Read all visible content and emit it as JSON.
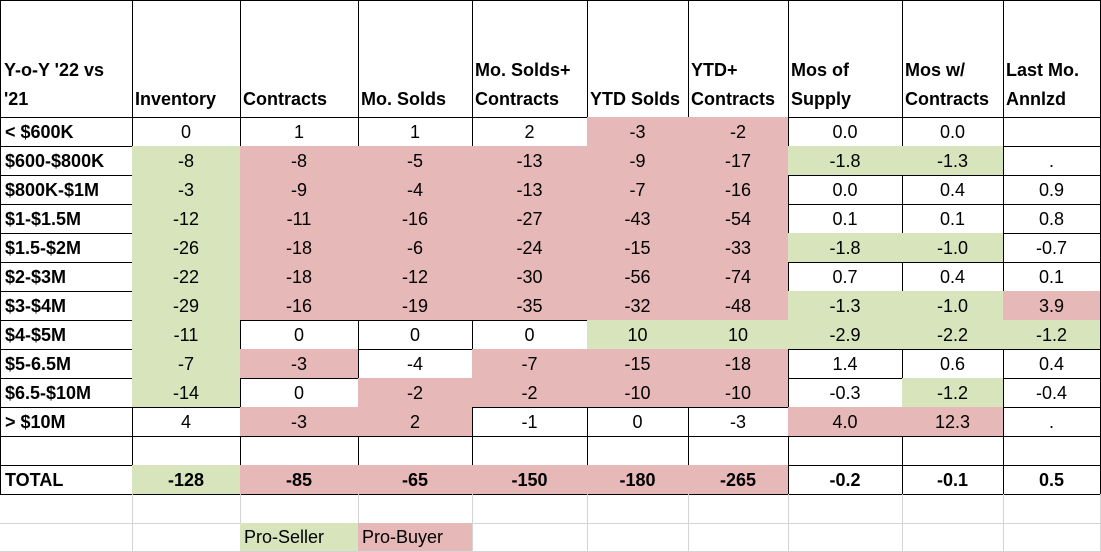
{
  "colors": {
    "pro_seller": "#d8e4bc",
    "pro_buyer": "#e6b8b7"
  },
  "table": {
    "headers": [
      "Y-o-Y '22 vs '21",
      "Inventory",
      "Contracts",
      "Mo. Solds",
      "Mo. Solds+ Contracts",
      "YTD Solds",
      "YTD+ Contracts",
      "Mos of Supply",
      "Mos w/ Contracts",
      "Last Mo. Annlzd"
    ],
    "rows": [
      {
        "label": "< $600K",
        "values": [
          "0",
          "1",
          "1",
          "2",
          "-3",
          "-2",
          "0.0",
          "0.0",
          ""
        ],
        "colors": [
          "",
          "",
          "",
          "",
          "p",
          "p",
          "",
          "",
          ""
        ]
      },
      {
        "label": "$600-$800K",
        "values": [
          "-8",
          "-8",
          "-5",
          "-13",
          "-9",
          "-17",
          "-1.8",
          "-1.3",
          "."
        ],
        "colors": [
          "g",
          "p",
          "p",
          "p",
          "p",
          "p",
          "g",
          "g",
          ""
        ]
      },
      {
        "label": "$800K-$1M",
        "values": [
          "-3",
          "-9",
          "-4",
          "-13",
          "-7",
          "-16",
          "0.0",
          "0.4",
          "0.9"
        ],
        "colors": [
          "g",
          "p",
          "p",
          "p",
          "p",
          "p",
          "",
          "",
          ""
        ]
      },
      {
        "label": "$1-$1.5M",
        "values": [
          "-12",
          "-11",
          "-16",
          "-27",
          "-43",
          "-54",
          "0.1",
          "0.1",
          "0.8"
        ],
        "colors": [
          "g",
          "p",
          "p",
          "p",
          "p",
          "p",
          "",
          "",
          ""
        ]
      },
      {
        "label": "$1.5-$2M",
        "values": [
          "-26",
          "-18",
          "-6",
          "-24",
          "-15",
          "-33",
          "-1.8",
          "-1.0",
          "-0.7"
        ],
        "colors": [
          "g",
          "p",
          "p",
          "p",
          "p",
          "p",
          "g",
          "g",
          ""
        ]
      },
      {
        "label": "$2-$3M",
        "values": [
          "-22",
          "-18",
          "-12",
          "-30",
          "-56",
          "-74",
          "0.7",
          "0.4",
          "0.1"
        ],
        "colors": [
          "g",
          "p",
          "p",
          "p",
          "p",
          "p",
          "",
          "",
          ""
        ]
      },
      {
        "label": "$3-$4M",
        "values": [
          "-29",
          "-16",
          "-19",
          "-35",
          "-32",
          "-48",
          "-1.3",
          "-1.0",
          "3.9"
        ],
        "colors": [
          "g",
          "p",
          "p",
          "p",
          "p",
          "p",
          "g",
          "g",
          "p"
        ]
      },
      {
        "label": "$4-$5M",
        "values": [
          "-11",
          "0",
          "0",
          "0",
          "10",
          "10",
          "-2.9",
          "-2.2",
          "-1.2"
        ],
        "colors": [
          "g",
          "",
          "",
          "",
          "g",
          "g",
          "g",
          "g",
          "g"
        ]
      },
      {
        "label": "$5-6.5M",
        "values": [
          "-7",
          "-3",
          "-4",
          "-7",
          "-15",
          "-18",
          "1.4",
          "0.6",
          "0.4"
        ],
        "colors": [
          "g",
          "p",
          "",
          "p",
          "p",
          "p",
          "",
          "",
          ""
        ]
      },
      {
        "label": "$6.5-$10M",
        "values": [
          "-14",
          "0",
          "-2",
          "-2",
          "-10",
          "-10",
          "-0.3",
          "-1.2",
          "-0.4"
        ],
        "colors": [
          "g",
          "",
          "p",
          "p",
          "p",
          "p",
          "",
          "g",
          ""
        ]
      },
      {
        "label": "> $10M",
        "values": [
          "4",
          "-3",
          "2",
          "-1",
          "0",
          "-3",
          "4.0",
          "12.3",
          "."
        ],
        "colors": [
          "",
          "p",
          "p",
          "",
          "",
          "",
          "p",
          "p",
          ""
        ]
      }
    ],
    "total": {
      "label": "TOTAL",
      "values": [
        "-128",
        "-85",
        "-65",
        "-150",
        "-180",
        "-265",
        "-0.2",
        "-0.1",
        "0.5"
      ],
      "colors": [
        "g",
        "p",
        "p",
        "p",
        "p",
        "p",
        "",
        "",
        ""
      ]
    }
  },
  "legend": {
    "pro_seller": "Pro-Seller",
    "pro_buyer": "Pro-Buyer"
  }
}
